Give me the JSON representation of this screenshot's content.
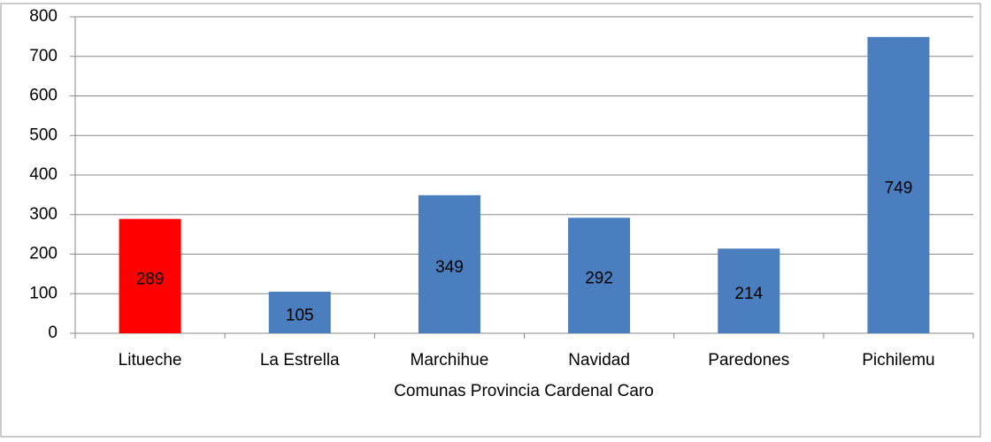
{
  "chart_data": {
    "type": "bar",
    "categories": [
      "Litueche",
      "La Estrella",
      "Marchihue",
      "Navidad",
      "Paredones",
      "Pichilemu"
    ],
    "values": [
      289,
      105,
      349,
      292,
      214,
      749
    ],
    "colors": [
      "#ff0000",
      "#4a7ebf",
      "#4a7ebf",
      "#4a7ebf",
      "#4a7ebf",
      "#4a7ebf"
    ],
    "xlabel": "Comunas  Provincia Cardenal Caro",
    "ylim": [
      0,
      800
    ],
    "yticks": [
      0,
      100,
      200,
      300,
      400,
      500,
      600,
      700,
      800
    ],
    "grid": true
  }
}
